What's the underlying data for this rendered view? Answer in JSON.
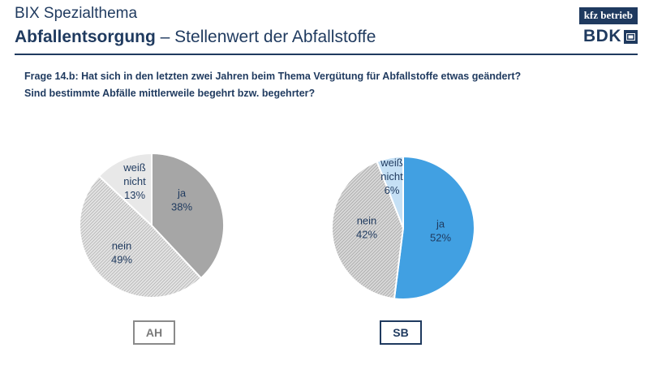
{
  "header": {
    "subtitle": "BIX Spezialthema",
    "title_bold": "Abfallentsorgung",
    "title_rest": " – Stellenwert der Abfallstoffe"
  },
  "logos": {
    "kfz": "kfz betrieb",
    "bdk": "BDK"
  },
  "question": {
    "line1": "Frage 14.b: Hat sich in den letzten zwei Jahren beim Thema Vergütung für Abfallstoffe etwas geändert?",
    "line2": "Sind bestimmte Abfälle mittlerweile begehrt bzw. begehrter?"
  },
  "colors": {
    "navy": "#1f3a5f",
    "ah_ja": "#a6a6a6",
    "ah_nein": "#dcdcdc",
    "ah_weiss": "#e8e8e8",
    "sb_ja": "#41a0e2",
    "sb_nein": "#d2d2d2",
    "sb_weiss": "#c5e0f5"
  },
  "chart_data": [
    {
      "type": "pie",
      "title": "AH",
      "slices": [
        {
          "label": "ja",
          "value": 38,
          "pct_text": "38%"
        },
        {
          "label": "nein",
          "value": 49,
          "pct_text": "49%"
        },
        {
          "label": "weiß nicht",
          "value": 13,
          "pct_text": "13%"
        }
      ]
    },
    {
      "type": "pie",
      "title": "SB",
      "slices": [
        {
          "label": "ja",
          "value": 52,
          "pct_text": "52%"
        },
        {
          "label": "nein",
          "value": 42,
          "pct_text": "42%"
        },
        {
          "label": "weiß nicht",
          "value": 6,
          "pct_text": "6%"
        }
      ]
    }
  ]
}
